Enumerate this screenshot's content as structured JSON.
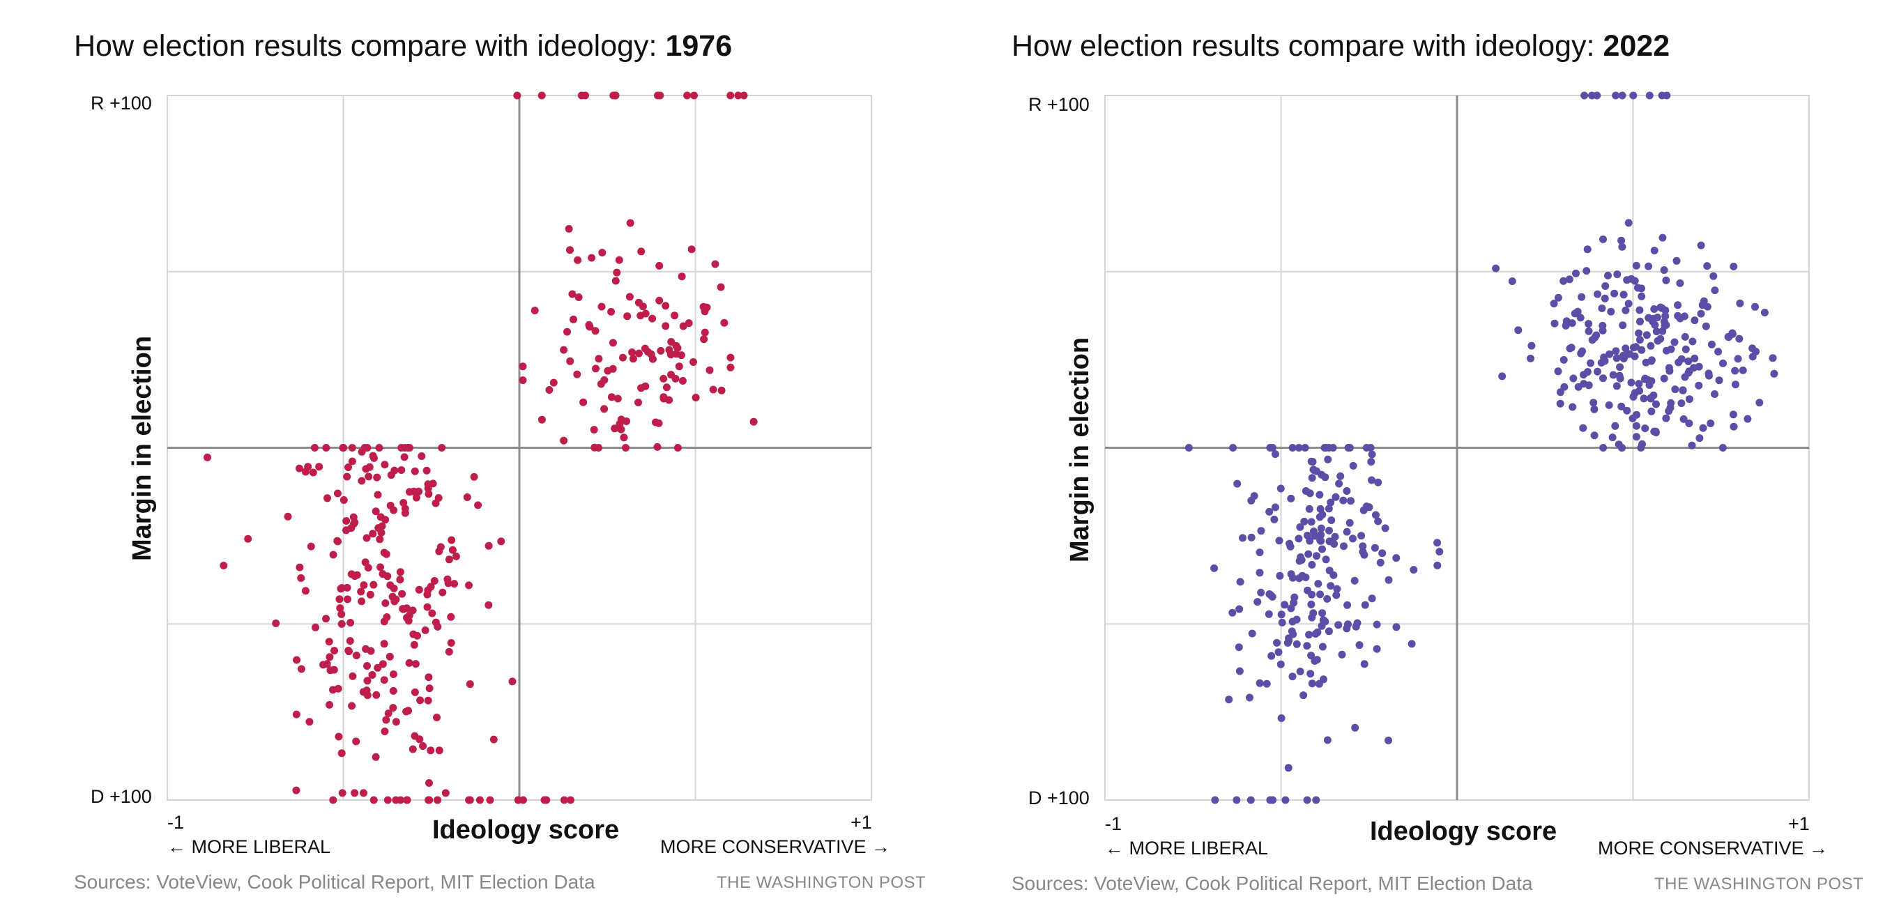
{
  "chart_data": [
    {
      "type": "scatter",
      "title_prefix": "How election results compare with ideology: ",
      "title_year": "1976",
      "xlabel": "Ideology score",
      "ylabel": "Margin in election",
      "xlim": [
        -1,
        1
      ],
      "ylim": [
        -100,
        100
      ],
      "x_ticks": [
        "-1",
        "+1"
      ],
      "y_ticks": [
        "R +100",
        "D +100"
      ],
      "x_left_note": "← MORE LIBERAL",
      "x_right_note": "MORE CONSERVATIVE →",
      "source": "Sources: VoteView, Cook Political Report, MIT Election Data",
      "credit": "THE WASHINGTON POST",
      "color": "#bf1e4b",
      "gen": {
        "seed": 1976,
        "clusters": [
          {
            "n": 230,
            "mx": -0.38,
            "sx": 0.13,
            "my": -40,
            "sy": 26,
            "xmin": -0.96,
            "xmax": -0.01,
            "ymin": -98,
            "ymax": 0
          },
          {
            "n": 115,
            "mx": 0.33,
            "sx": 0.14,
            "my": 27,
            "sy": 15,
            "xmin": 0.01,
            "xmax": 0.88,
            "ymin": 0,
            "ymax": 96
          }
        ],
        "lines": [
          {
            "n": 22,
            "y": -100,
            "xmin": -0.6,
            "xmax": 0.15
          },
          {
            "n": 14,
            "y": 100,
            "xmin": -0.05,
            "xmax": 0.7
          }
        ]
      }
    },
    {
      "type": "scatter",
      "title_prefix": "How election results compare with ideology: ",
      "title_year": "2022",
      "xlabel": "Ideology score",
      "ylabel": "Margin in election",
      "xlim": [
        -1,
        1
      ],
      "ylim": [
        -100,
        100
      ],
      "x_ticks": [
        "-1",
        "+1"
      ],
      "y_ticks": [
        "R +100",
        "D +100"
      ],
      "x_left_note": "← MORE LIBERAL",
      "x_right_note": "MORE CONSERVATIVE →",
      "source": "Sources: VoteView, Cook Political Report, MIT Election Data",
      "credit": "THE WASHINGTON POST",
      "color": "#5a4ea6",
      "gen": {
        "seed": 2022,
        "clusters": [
          {
            "n": 205,
            "mx": -0.4,
            "sx": 0.12,
            "my": -33,
            "sy": 22,
            "xmin": -0.85,
            "xmax": -0.05,
            "ymin": -96,
            "ymax": 0
          },
          {
            "n": 240,
            "mx": 0.54,
            "sx": 0.15,
            "my": 26,
            "sy": 16,
            "xmin": 0.1,
            "xmax": 1.0,
            "ymin": 0,
            "ymax": 98
          }
        ],
        "lines": [
          {
            "n": 8,
            "y": -100,
            "xmin": -0.75,
            "xmax": -0.4
          },
          {
            "n": 9,
            "y": 100,
            "xmin": 0.36,
            "xmax": 0.62
          }
        ]
      }
    }
  ]
}
